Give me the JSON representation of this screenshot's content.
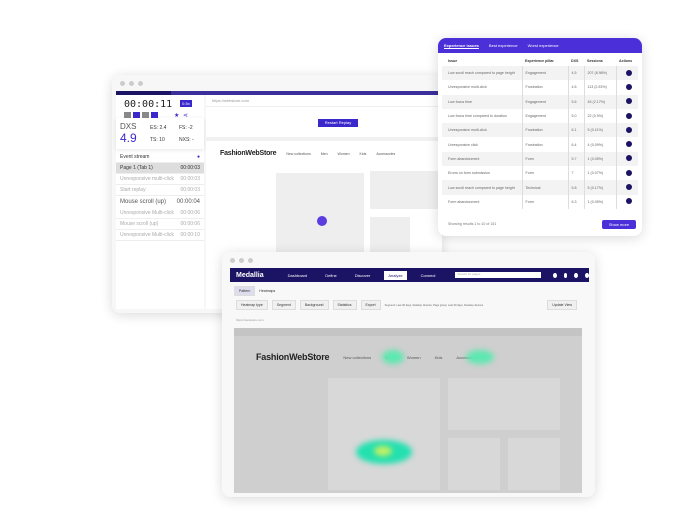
{
  "replay": {
    "timer": "00:00:11",
    "speed": "0.5x",
    "dxs_label": "DXS",
    "dxs_value": "4.9",
    "scores": [
      "ES: 2.4",
      "FS: -2",
      "TS: 10",
      "NXS: -"
    ],
    "events_header": "Event stream",
    "events": [
      {
        "label": "Page 1 (Tab 1)",
        "time": "00:00:03",
        "selected": true
      },
      {
        "label": "Unresponsive multi-click",
        "time": "00:00:03"
      },
      {
        "label": "Start replay",
        "time": "00:00:03"
      }
    ],
    "scroll_label": "Mouse scroll (up)",
    "scroll_time": "00:00:04",
    "events2": [
      {
        "label": "Unresponsive Multi-click",
        "time": "00:00:06"
      },
      {
        "label": "Mouse scroll (up)",
        "time": "00:00:06"
      },
      {
        "label": "Unresponsive Multi-click",
        "time": "00:00:10"
      }
    ],
    "url": "https://webstore.com",
    "restart": "Restart Replay",
    "store_name": "FashionWebStore",
    "nav": [
      "New collections",
      "Men",
      "Women",
      "Kids",
      "Accessories"
    ]
  },
  "issues": {
    "tabs": [
      "Experience issues",
      "Best experience",
      "Worst experience"
    ],
    "columns": [
      "Issue",
      "Experience pillar",
      "DXS",
      "Sessions",
      "Actions"
    ],
    "rows": [
      [
        "Low scroll reach compared to page height",
        "Engagement",
        "4.5",
        "207 (8.98%)"
      ],
      [
        "Unresponsive multi-click",
        "Frustration",
        "4.6",
        "113 (2.53%)"
      ],
      [
        "Low focus time",
        "Engagement",
        "5.6",
        "45 (2.17%)"
      ],
      [
        "Low focus time compared to duration",
        "Engagement",
        "5.0",
        "22 (0.9%)"
      ],
      [
        "Unresponsive multi-click",
        "Frustration",
        "6.1",
        "5 (0.11%)"
      ],
      [
        "Unresponsive click",
        "Frustration",
        "6.4",
        "4 (0.09%)"
      ],
      [
        "Form abandonment",
        "Form",
        "5.7",
        "1 (0.05%)"
      ],
      [
        "Errors on form submission",
        "Form",
        "7",
        "1 (0.07%)"
      ],
      [
        "Low scroll reach compared to page height",
        "Technical",
        "5.8",
        "5 (0.17%)"
      ],
      [
        "Form abandonment",
        "Form",
        "6.3",
        "1 (0.05%)"
      ]
    ],
    "footer": "Showing results 1 to 10 of 151",
    "show_more": "Show more"
  },
  "medallia": {
    "logo": "Medallia",
    "tabs": [
      "Dashboard",
      "Define",
      "Discover",
      "Analyze",
      "Connect"
    ],
    "active_tab": "Analyze",
    "search_placeholder": "Search for pages",
    "subtabs": [
      "Pattern",
      "Heatmaps"
    ],
    "filters": [
      "Heatmap type",
      "Segment",
      "Background",
      "Statistics",
      "Export"
    ],
    "filter_summary": "Segment: Last 30 days, Desktop devices; Page group: Last 30 days, Desktop devices",
    "update": "Update View",
    "url": "https://webstore.com",
    "store_name": "FashionWebStore",
    "nav": [
      "New collections",
      "Men",
      "Women",
      "Kids",
      "Accessories"
    ]
  },
  "colors": {
    "accent": "#4b2fd8",
    "navy": "#1b1464",
    "heat": "#2ee8a0"
  }
}
